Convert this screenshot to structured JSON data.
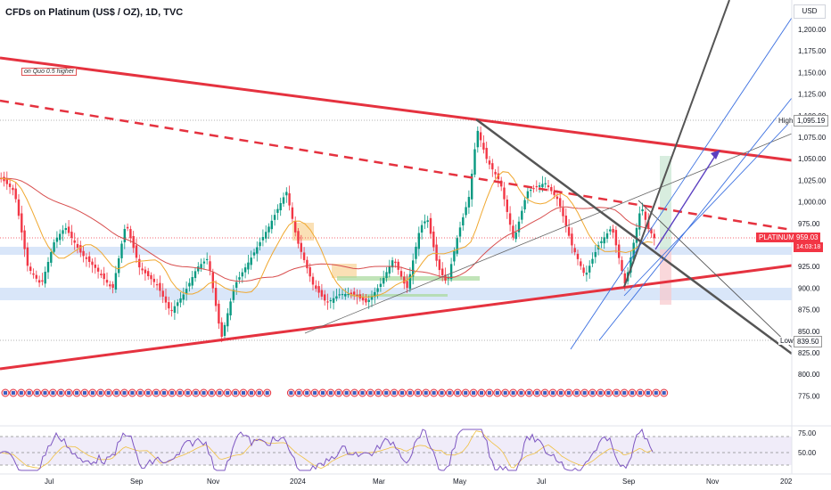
{
  "header": {
    "title": "CFDs on Platinum (US$ / OZ), 1D, TVC",
    "note": "on Quo 0.5 higher",
    "currency": "USD"
  },
  "price_axis": {
    "ticks": [
      "1,200.00",
      "1,175.00",
      "1,150.00",
      "1,125.00",
      "1,100.00",
      "1,075.00",
      "1,050.00",
      "1,025.00",
      "1,000.00",
      "975.00",
      "950.00",
      "925.00",
      "900.00",
      "875.00",
      "850.00",
      "825.00",
      "800.00",
      "775.00"
    ],
    "high_label": "High",
    "high_value": "1,095.19",
    "low_label": "Low",
    "low_value": "839.50",
    "symbol_tag": "PLATINUM",
    "last_price": "959.03",
    "countdown": "14:03:18"
  },
  "rsi_axis": {
    "ticks": [
      "75.00",
      "50.00"
    ]
  },
  "time_axis": {
    "labels": [
      "Jul",
      "Sep",
      "Nov",
      "2024",
      "Mar",
      "May",
      "Jul",
      "Sep",
      "Nov",
      "202"
    ]
  },
  "colors": {
    "up": "#089981",
    "down": "#f23645",
    "trend": "#e5323f",
    "ma_red": "#d84e4e",
    "ma_orange": "#f0a830",
    "channel": "#3a6fe0",
    "rsi": "#7e57c2",
    "support": "#cfe0f8"
  }
}
